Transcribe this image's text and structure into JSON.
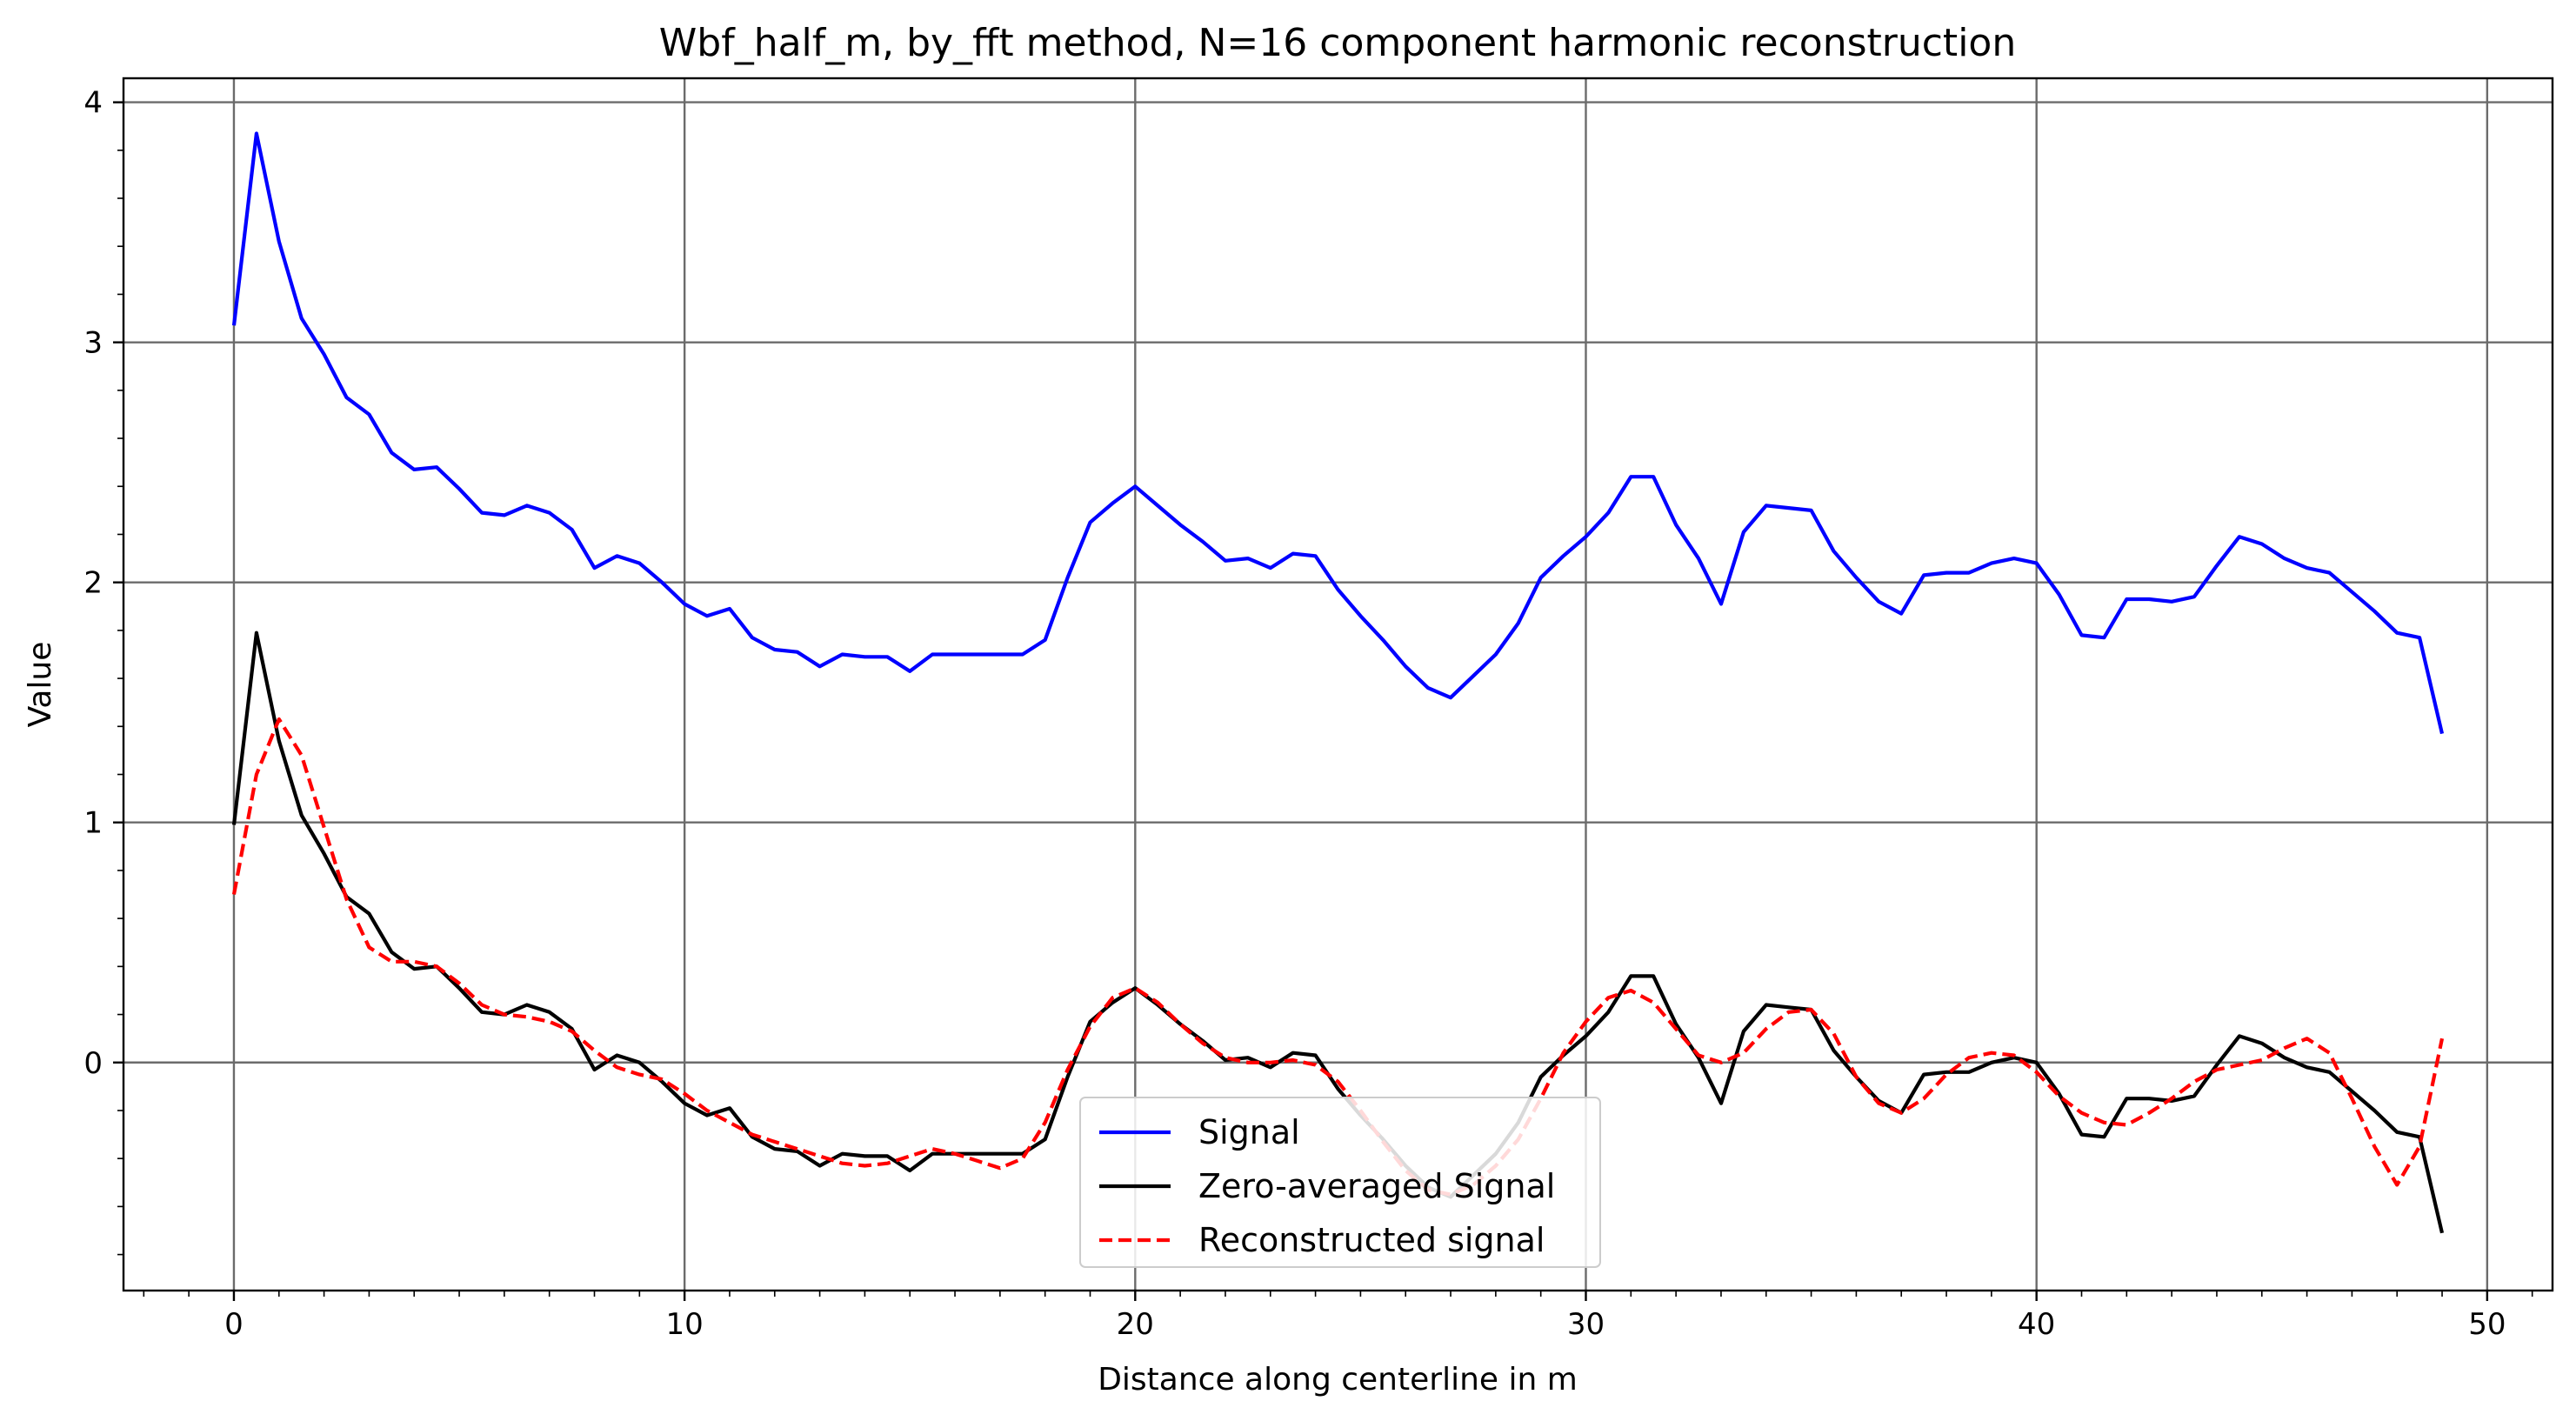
{
  "chart_data": {
    "type": "line",
    "title": "Wbf_half_m, by_fft method, N=16 component harmonic reconstruction",
    "xlabel": "Distance along centerline in m",
    "ylabel": "Value",
    "xlim": [
      -2.45,
      51.45
    ],
    "ylim": [
      -0.95,
      4.1
    ],
    "xticks": [
      0,
      10,
      20,
      30,
      40,
      50
    ],
    "yticks": [
      0,
      1,
      2,
      3,
      4
    ],
    "grid": true,
    "legend_position": "bottom-center",
    "x": [
      0,
      0.5,
      1,
      1.5,
      2,
      2.5,
      3,
      3.5,
      4,
      4.5,
      5,
      5.5,
      6,
      6.5,
      7,
      7.5,
      8,
      8.5,
      9,
      9.5,
      10,
      10.5,
      11,
      11.5,
      12,
      12.5,
      13,
      13.5,
      14,
      14.5,
      15,
      15.5,
      16,
      16.5,
      17,
      17.5,
      18,
      18.5,
      19,
      19.5,
      20,
      20.5,
      21,
      21.5,
      22,
      22.5,
      23,
      23.5,
      24,
      24.5,
      25,
      25.5,
      26,
      26.5,
      27,
      27.5,
      28,
      28.5,
      29,
      29.5,
      30,
      30.5,
      31,
      31.5,
      32,
      32.5,
      33,
      33.5,
      34,
      34.5,
      35,
      35.5,
      36,
      36.5,
      37,
      37.5,
      38,
      38.5,
      39,
      39.5,
      40,
      40.5,
      41,
      41.5,
      42,
      42.5,
      43,
      43.5,
      44,
      44.5,
      45,
      45.5,
      46,
      46.5,
      47,
      47.5,
      48,
      48.5,
      49
    ],
    "series": [
      {
        "name": "Signal",
        "color": "#0000ff",
        "style": "solid",
        "values": [
          3.07,
          3.87,
          3.42,
          3.1,
          2.95,
          2.77,
          2.7,
          2.54,
          2.47,
          2.48,
          2.39,
          2.29,
          2.28,
          2.32,
          2.29,
          2.22,
          2.06,
          2.11,
          2.08,
          2.0,
          1.91,
          1.86,
          1.89,
          1.77,
          1.72,
          1.71,
          1.65,
          1.7,
          1.69,
          1.69,
          1.63,
          1.7,
          1.7,
          1.7,
          1.7,
          1.7,
          1.76,
          2.02,
          2.25,
          2.33,
          2.4,
          2.32,
          2.24,
          2.17,
          2.09,
          2.1,
          2.06,
          2.12,
          2.11,
          1.97,
          1.86,
          1.76,
          1.65,
          1.56,
          1.52,
          1.61,
          1.7,
          1.83,
          2.02,
          2.11,
          2.19,
          2.29,
          2.44,
          2.44,
          2.24,
          2.1,
          1.91,
          2.21,
          2.32,
          2.31,
          2.3,
          2.13,
          2.02,
          1.92,
          1.87,
          2.03,
          2.04,
          2.04,
          2.08,
          2.1,
          2.08,
          1.95,
          1.78,
          1.77,
          1.93,
          1.93,
          1.92,
          1.94,
          2.07,
          2.19,
          2.16,
          2.1,
          2.06,
          2.04,
          1.96,
          1.88,
          1.79,
          1.77,
          1.37
        ]
      },
      {
        "name": "Zero-averaged Signal",
        "color": "#000000",
        "style": "solid",
        "values": [
          0.99,
          1.79,
          1.34,
          1.03,
          0.87,
          0.69,
          0.62,
          0.46,
          0.39,
          0.4,
          0.31,
          0.21,
          0.2,
          0.24,
          0.21,
          0.14,
          -0.03,
          0.03,
          0.0,
          -0.08,
          -0.17,
          -0.22,
          -0.19,
          -0.31,
          -0.36,
          -0.37,
          -0.43,
          -0.38,
          -0.39,
          -0.39,
          -0.45,
          -0.38,
          -0.38,
          -0.38,
          -0.38,
          -0.38,
          -0.32,
          -0.06,
          0.17,
          0.25,
          0.31,
          0.24,
          0.16,
          0.09,
          0.01,
          0.02,
          -0.02,
          0.04,
          0.03,
          -0.11,
          -0.22,
          -0.32,
          -0.43,
          -0.52,
          -0.56,
          -0.47,
          -0.38,
          -0.25,
          -0.06,
          0.03,
          0.11,
          0.21,
          0.36,
          0.36,
          0.16,
          0.02,
          -0.17,
          0.13,
          0.24,
          0.23,
          0.22,
          0.05,
          -0.06,
          -0.16,
          -0.21,
          -0.05,
          -0.04,
          -0.04,
          0.0,
          0.02,
          0.0,
          -0.13,
          -0.3,
          -0.31,
          -0.15,
          -0.15,
          -0.16,
          -0.14,
          -0.01,
          0.11,
          0.08,
          0.02,
          -0.02,
          -0.04,
          -0.12,
          -0.2,
          -0.29,
          -0.31,
          -0.71
        ]
      },
      {
        "name": "Reconstructed signal",
        "color": "#ff0000",
        "style": "dashed",
        "values": [
          0.7,
          1.2,
          1.43,
          1.28,
          0.98,
          0.68,
          0.48,
          0.42,
          0.42,
          0.4,
          0.33,
          0.24,
          0.2,
          0.19,
          0.17,
          0.13,
          0.05,
          -0.02,
          -0.05,
          -0.07,
          -0.13,
          -0.2,
          -0.25,
          -0.3,
          -0.33,
          -0.36,
          -0.39,
          -0.42,
          -0.43,
          -0.42,
          -0.39,
          -0.36,
          -0.38,
          -0.41,
          -0.44,
          -0.4,
          -0.25,
          -0.03,
          0.15,
          0.27,
          0.31,
          0.25,
          0.16,
          0.08,
          0.02,
          0.0,
          0.0,
          0.01,
          -0.01,
          -0.08,
          -0.2,
          -0.33,
          -0.45,
          -0.53,
          -0.55,
          -0.51,
          -0.43,
          -0.32,
          -0.15,
          0.04,
          0.17,
          0.27,
          0.3,
          0.25,
          0.14,
          0.03,
          0.0,
          0.04,
          0.14,
          0.21,
          0.22,
          0.12,
          -0.06,
          -0.17,
          -0.21,
          -0.15,
          -0.05,
          0.02,
          0.04,
          0.03,
          -0.04,
          -0.14,
          -0.21,
          -0.25,
          -0.26,
          -0.21,
          -0.15,
          -0.08,
          -0.03,
          -0.01,
          0.01,
          0.06,
          0.1,
          0.04,
          -0.15,
          -0.35,
          -0.51,
          -0.35,
          0.1
        ]
      }
    ]
  }
}
